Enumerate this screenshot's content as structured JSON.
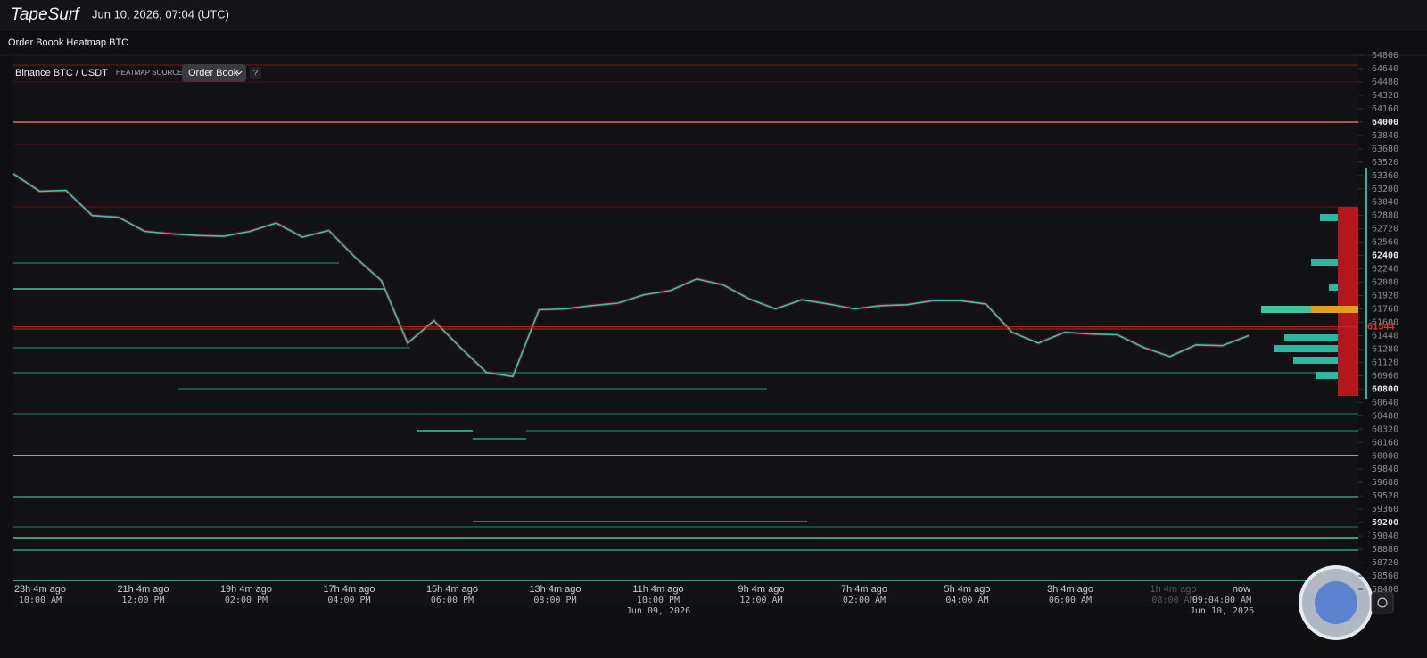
{
  "header": {
    "brand": "TapeSurf",
    "datetime": "Jun 10, 2026, 07:04 (UTC)",
    "page_title": "Order Boook Heatmap BTC"
  },
  "toolbar": {
    "pair": "Binance BTC / USDT",
    "source_label": "HEATMAP SOURCE",
    "source_value": "Order Book",
    "help": "?"
  },
  "chart_data": {
    "type": "line",
    "color": "#3fc1b0",
    "values": [
      63380,
      63170,
      63180,
      62880,
      62860,
      62690,
      62660,
      62640,
      62630,
      62690,
      62790,
      62620,
      62700,
      62380,
      62100,
      61350,
      61620,
      61300,
      61000,
      60950,
      61750,
      61760,
      61800,
      61830,
      61930,
      61980,
      62120,
      62050,
      61880,
      61760,
      61870,
      61820,
      61760,
      61800,
      61810,
      61860,
      61860,
      61820,
      61480,
      61350,
      61480,
      61460,
      61450,
      61300,
      61190,
      61330,
      61320,
      61440
    ],
    "current_price": 61544,
    "ylim": [
      58400,
      64800
    ],
    "yticks": [
      64800,
      64640,
      64480,
      64320,
      64160,
      64000,
      63840,
      63680,
      63520,
      63360,
      63200,
      63040,
      62880,
      62720,
      62560,
      62400,
      62240,
      62080,
      61920,
      61760,
      61600,
      61440,
      61280,
      61120,
      60960,
      60800,
      60640,
      60480,
      60320,
      60160,
      60000,
      59840,
      59680,
      59520,
      59360,
      59200,
      59040,
      58880,
      58720,
      58560,
      58400
    ],
    "xlabels": [
      {
        "ago": "23h 4m ago",
        "time": "10:00 AM"
      },
      {
        "ago": "21h 4m ago",
        "time": "12:00 PM"
      },
      {
        "ago": "19h 4m ago",
        "time": "02:00 PM"
      },
      {
        "ago": "17h 4m ago",
        "time": "04:00 PM"
      },
      {
        "ago": "15h 4m ago",
        "time": "06:00 PM"
      },
      {
        "ago": "13h 4m ago",
        "time": "08:00 PM"
      },
      {
        "ago": "11h 4m ago",
        "time": "10:00 PM",
        "date": "Jun 09, 2026"
      },
      {
        "ago": "9h 4m ago",
        "time": "12:00 AM"
      },
      {
        "ago": "7h 4m ago",
        "time": "02:00 AM"
      },
      {
        "ago": "5h 4m ago",
        "time": "04:00 AM"
      },
      {
        "ago": "3h 4m ago",
        "time": "06:00 AM"
      },
      {
        "ago": "1h 4m ago",
        "time": "08:00 AM"
      },
      {
        "ago": "now",
        "time": "09:04:00 AM",
        "date": "Jun 10, 2026"
      }
    ]
  }
}
